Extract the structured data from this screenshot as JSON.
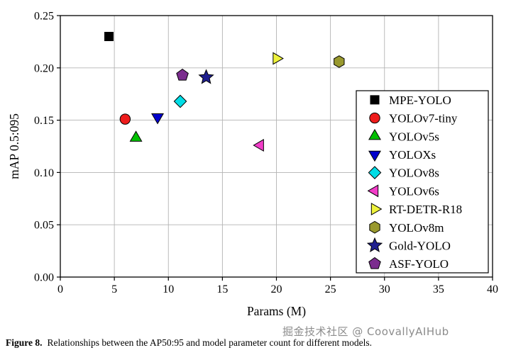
{
  "figure": {
    "caption_label": "Figure 8.",
    "caption_text": "Relationships between the AP50:95 and model parameter count for different models.",
    "watermark": "掘金技术社区 @ CoovallyAIHub"
  },
  "chart_data": {
    "type": "scatter",
    "title": "",
    "xlabel": "Params (M)",
    "ylabel": "mAP 0.5:095",
    "xlim": [
      0,
      40
    ],
    "ylim": [
      0,
      0.25
    ],
    "xticks": [
      0,
      5,
      10,
      15,
      20,
      25,
      30,
      35,
      40
    ],
    "xtick_labels": [
      "0",
      "5",
      "10",
      "15",
      "20",
      "25",
      "30",
      "35",
      "40"
    ],
    "yticks": [
      0,
      0.05,
      0.1,
      0.15,
      0.2,
      0.25
    ],
    "ytick_labels": [
      "0.00",
      "0.05",
      "0.10",
      "0.15",
      "0.20",
      "0.25"
    ],
    "grid": true,
    "legend_position": "right-inside",
    "series": [
      {
        "name": "MPE-YOLO",
        "marker": "square",
        "color": "#000000",
        "x": 4.5,
        "y": 0.23
      },
      {
        "name": "YOLOv7-tiny",
        "marker": "circle",
        "color": "#ee1c1c",
        "x": 6.0,
        "y": 0.151
      },
      {
        "name": "YOLOv5s",
        "marker": "triangle-up",
        "color": "#00c000",
        "x": 7.0,
        "y": 0.133
      },
      {
        "name": "YOLOXs",
        "marker": "triangle-down",
        "color": "#0000cd",
        "x": 9.0,
        "y": 0.153
      },
      {
        "name": "YOLOv8s",
        "marker": "diamond",
        "color": "#00dde6",
        "x": 11.1,
        "y": 0.168
      },
      {
        "name": "YOLOv6s",
        "marker": "triangle-left",
        "color": "#f23cc8",
        "x": 18.5,
        "y": 0.126
      },
      {
        "name": "RT-DETR-R18",
        "marker": "triangle-right",
        "color": "#eef23c",
        "x": 20.0,
        "y": 0.209
      },
      {
        "name": "YOLOv8m",
        "marker": "hexagon",
        "color": "#99992e",
        "x": 25.8,
        "y": 0.206
      },
      {
        "name": "Gold-YOLO",
        "marker": "star",
        "color": "#1f1f8f",
        "x": 13.5,
        "y": 0.191
      },
      {
        "name": "ASF-YOLO",
        "marker": "pentagon",
        "color": "#7b2d8e",
        "x": 11.3,
        "y": 0.193
      }
    ]
  }
}
